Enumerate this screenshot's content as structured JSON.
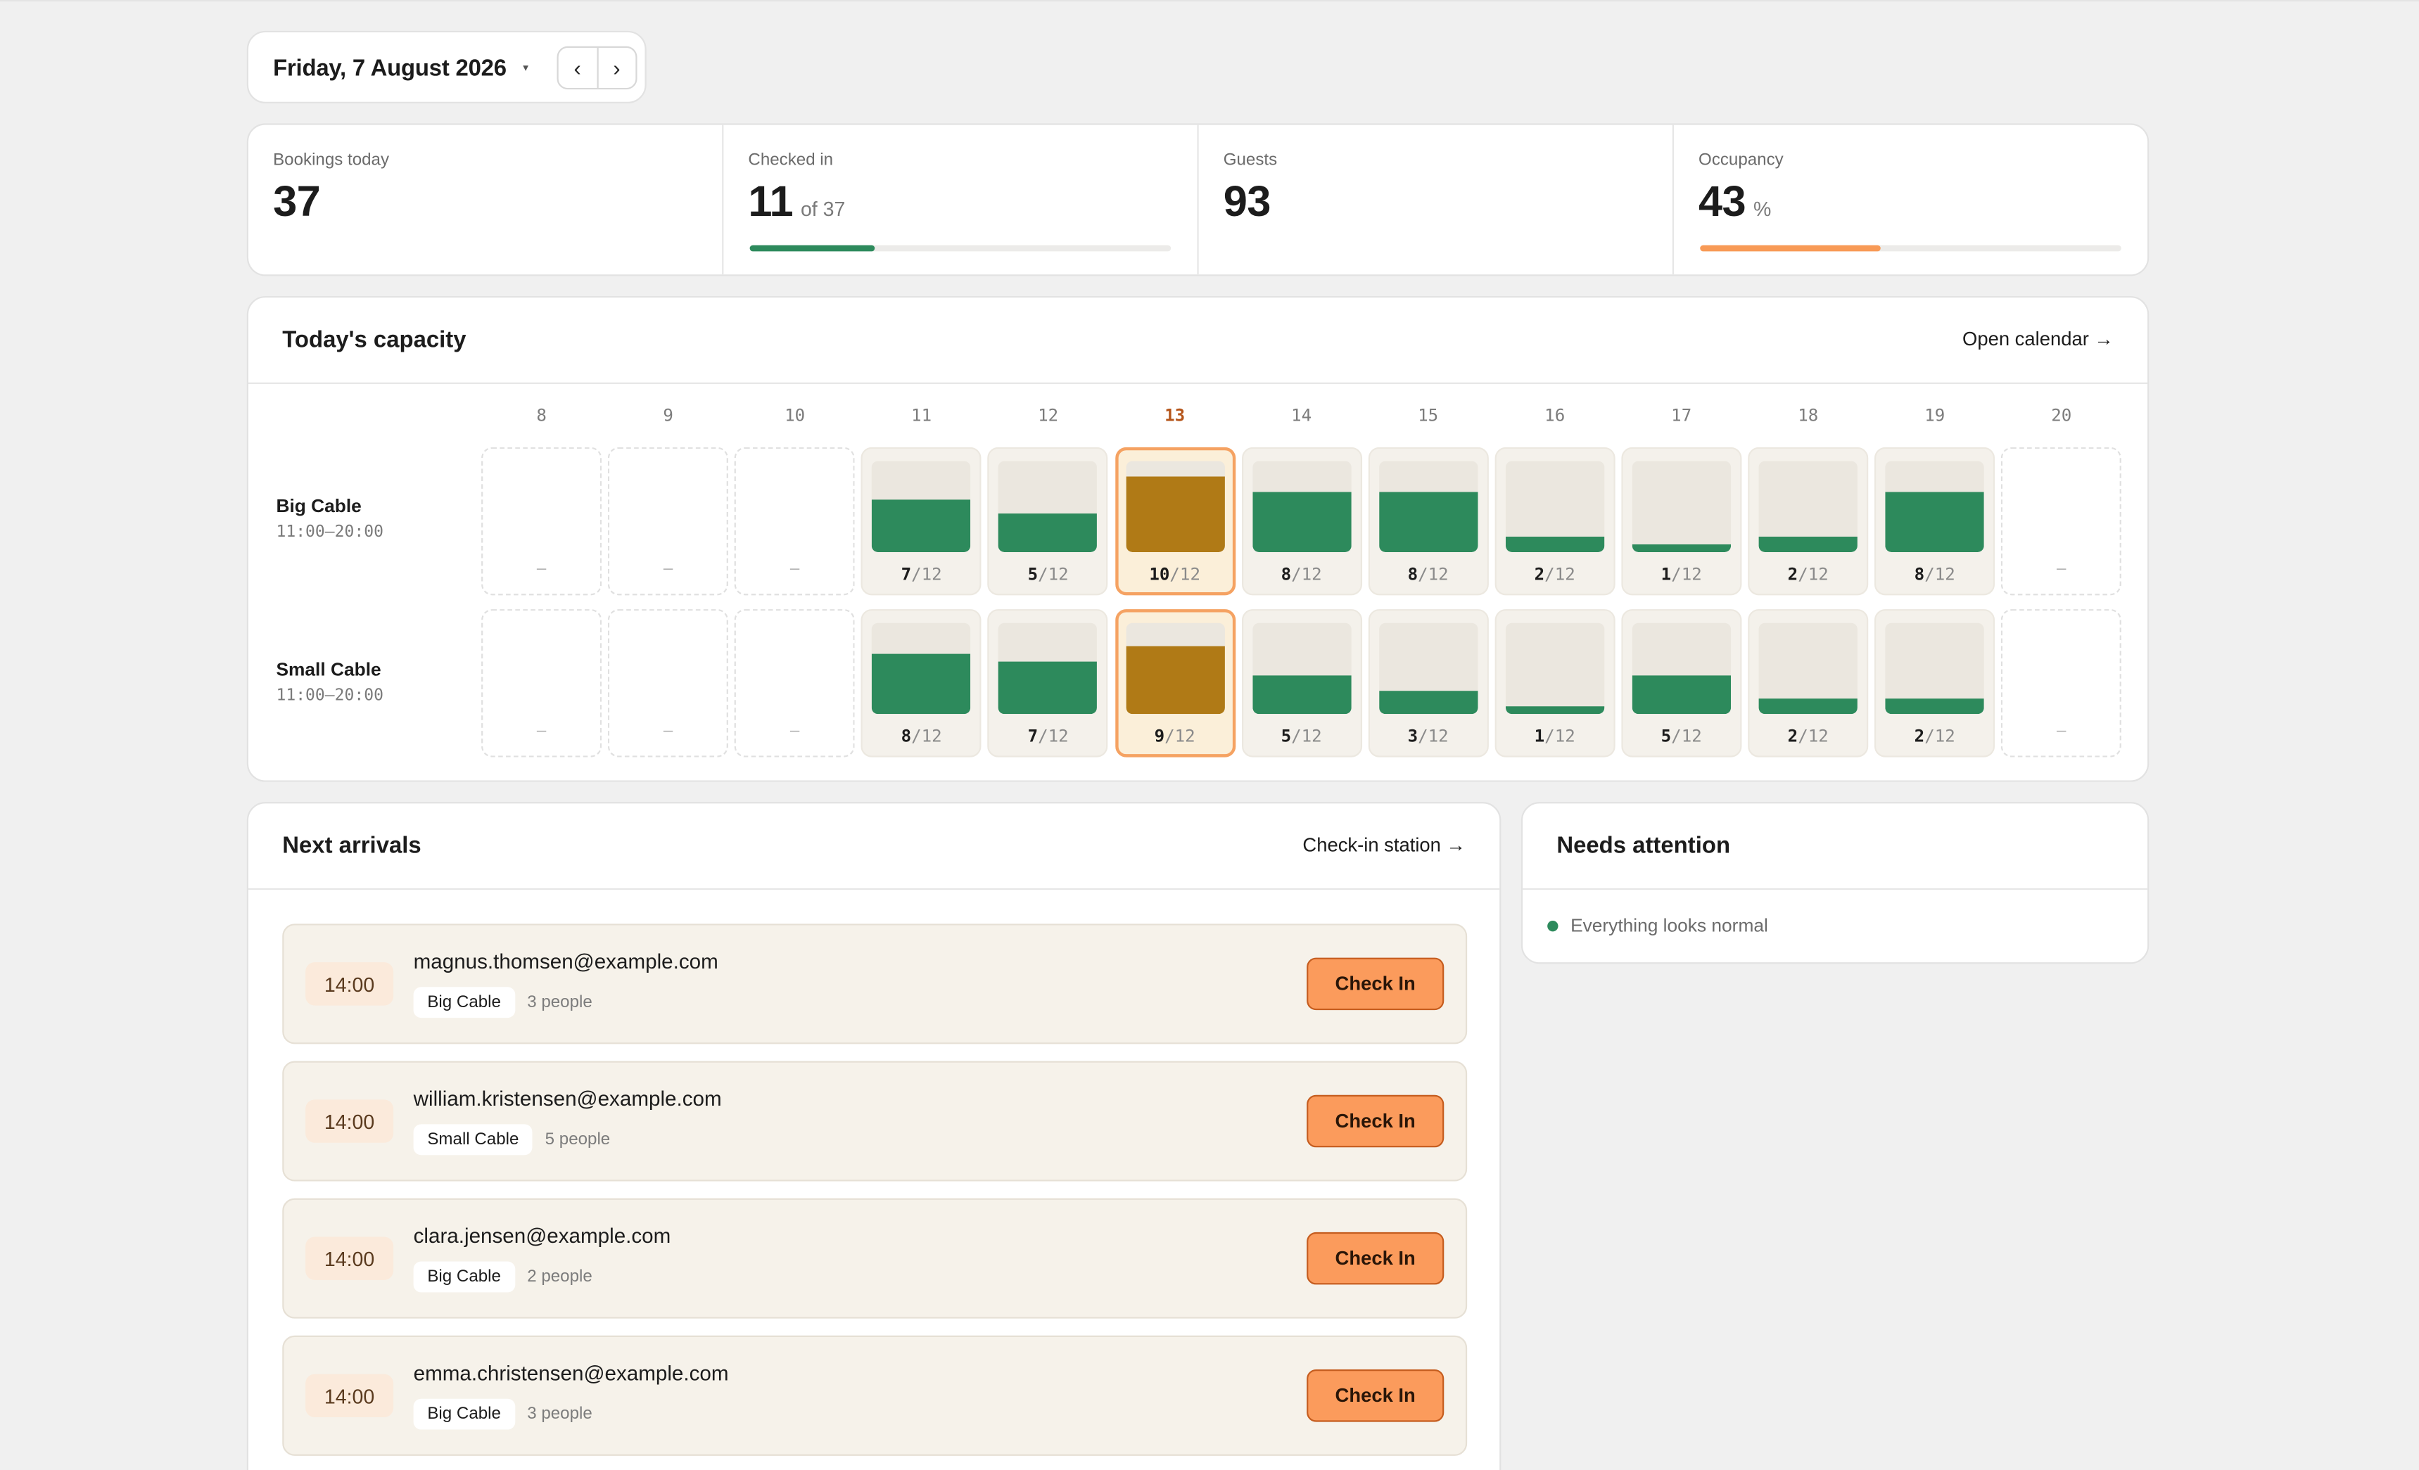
{
  "header": {
    "date": "Friday, 7 August 2026",
    "caret": "▾",
    "prev": "‹",
    "next": "›"
  },
  "stats": {
    "bookings_label": "Bookings today",
    "bookings_value": "37",
    "checked_label": "Checked in",
    "checked_value": "11",
    "checked_sub": "of 37",
    "checked_progress": 0.297,
    "guests_label": "Guests",
    "guests_value": "93",
    "occupancy_label": "Occupancy",
    "occupancy_value": "43",
    "occupancy_unit": "%",
    "occupancy_progress": 0.43
  },
  "capacity": {
    "title": "Today's capacity",
    "link": "Open calendar →",
    "current_hour": "13",
    "hours": [
      "8",
      "9",
      "10",
      "11",
      "12",
      "13",
      "14",
      "15",
      "16",
      "17",
      "18",
      "19",
      "20"
    ],
    "rows": [
      {
        "name": "Big Cable",
        "hours_text": "11:00–20:00",
        "cells": [
          null,
          null,
          null,
          7,
          5,
          10,
          8,
          8,
          2,
          1,
          2,
          8,
          null
        ]
      },
      {
        "name": "Small Cable",
        "hours_text": "11:00–20:00",
        "cells": [
          null,
          null,
          null,
          8,
          7,
          9,
          5,
          3,
          1,
          5,
          2,
          2,
          null
        ]
      }
    ],
    "capacity_max": 12,
    "empty_label": "–",
    "colors": {
      "available": "#2d8a5c",
      "current": "#b07a16"
    }
  },
  "arrivals": {
    "title": "Next arrivals",
    "link": "Check-in station →",
    "button_label": "Check In",
    "items": [
      {
        "time": "14:00",
        "email": "magnus.thomsen@example.com",
        "cable": "Big Cable",
        "people": "3 people"
      },
      {
        "time": "14:00",
        "email": "william.kristensen@example.com",
        "cable": "Small Cable",
        "people": "5 people"
      },
      {
        "time": "14:00",
        "email": "clara.jensen@example.com",
        "cable": "Big Cable",
        "people": "2 people"
      },
      {
        "time": "14:00",
        "email": "emma.christensen@example.com",
        "cable": "Big Cable",
        "people": "3 people"
      }
    ]
  },
  "attention": {
    "title": "Needs attention",
    "status": "Everything looks normal"
  },
  "colors": {
    "accent_orange": "#fb9b5c",
    "accent_green": "#2d8a5c"
  }
}
